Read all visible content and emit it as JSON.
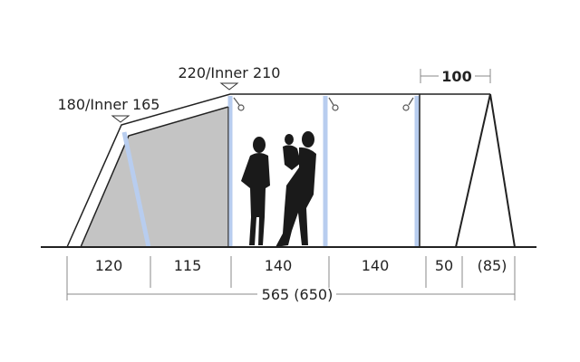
{
  "heights": {
    "front": "180/Inner 165",
    "main": "220/Inner 210",
    "canopy_depth": "100"
  },
  "sections": [
    "120",
    "115",
    "140",
    "140",
    "50",
    "(85)"
  ],
  "total_length": "565 (650)",
  "colors": {
    "line": "#222222",
    "inner_fill": "#c4c4c4",
    "pole": "#b8cdef",
    "text": "#222222"
  }
}
